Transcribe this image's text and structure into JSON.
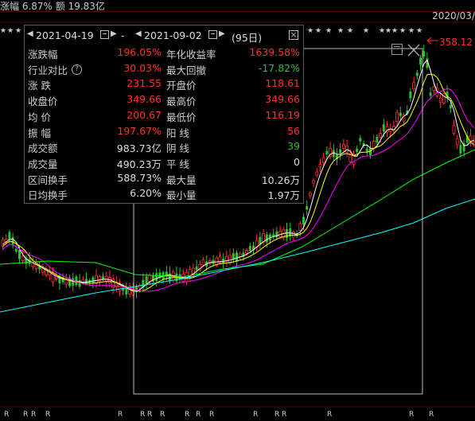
{
  "header": {
    "left_text": "涨幅 6.87%   额 19.83亿",
    "date_right": "2020/03/"
  },
  "panel": {
    "start_date": "2021-04-19",
    "separator": "-",
    "end_date": "2021-09-02",
    "days": "(95日)",
    "rows": [
      {
        "l1": "涨跌幅",
        "v1": "196.05%",
        "c1": "red",
        "l2": "年化收益率",
        "v2": "1639.58%",
        "c2": "red"
      },
      {
        "l1": "行业对比",
        "v1": "30.03%",
        "c1": "red",
        "l2": "最大回撤",
        "v2": "-17.82%",
        "c2": "grn",
        "help": true
      },
      {
        "l1": "涨    跌",
        "v1": "231.55",
        "c1": "red",
        "l2": "开盘价",
        "v2": "118.61",
        "c2": "red"
      },
      {
        "l1": "收盘价",
        "v1": "349.66",
        "c1": "red",
        "l2": "最高价",
        "v2": "349.66",
        "c2": "red"
      },
      {
        "l1": "均    价",
        "v1": "200.67",
        "c1": "red",
        "l2": "最低价",
        "v2": "116.19",
        "c2": "red"
      },
      {
        "l1": "振    幅",
        "v1": "197.67%",
        "c1": "red",
        "l2": "阳    线",
        "v2": "56",
        "c2": "red"
      },
      {
        "l1": "成交额",
        "v1": "983.73亿",
        "c1": "wht",
        "l2": "阴    线",
        "v2": "39",
        "c2": "grn"
      },
      {
        "l1": "成交量",
        "v1": "490.23万",
        "c1": "wht",
        "l2": "平    线",
        "v2": "0",
        "c2": "wht"
      },
      {
        "l1": "区间换手",
        "v1": "588.73%",
        "c1": "wht",
        "l2": "最大量",
        "v2": "10.26万",
        "c2": "wht"
      },
      {
        "l1": "日均换手",
        "v1": "6.20%",
        "c1": "wht",
        "l2": "最小量",
        "v2": "1.97万",
        "c2": "wht"
      }
    ]
  },
  "price_high_label": "358.12",
  "r_mark": "R",
  "star_mark": "★",
  "icons": {
    "calendar": "calendar-icon",
    "close": "close-icon",
    "left_arrow": "triangle-left-icon",
    "right_arrow": "triangle-right-icon"
  },
  "colors": {
    "up": "#ff3030",
    "down": "#2fbf2f",
    "ma5": "#ffffff",
    "ma10": "#ffff00",
    "ma20": "#ff00ff",
    "ma60": "#00ff00",
    "ma120": "#00ffff"
  }
}
